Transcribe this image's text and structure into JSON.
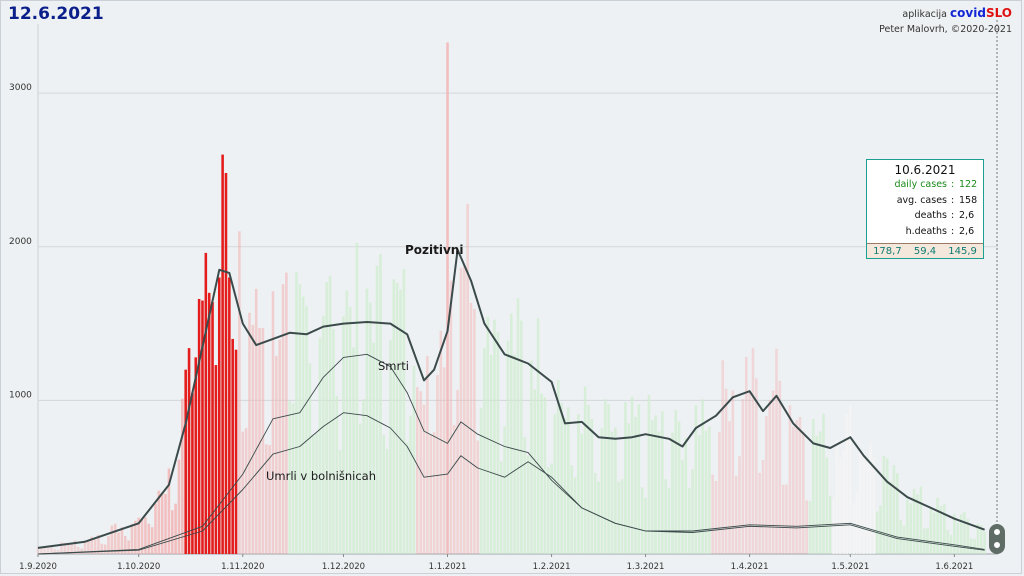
{
  "header": {
    "date": "12.6.2021",
    "app_prefix": "aplikacija",
    "brand_part1": "covid",
    "brand_part2": "SLO",
    "copyright": "Peter Malovrh, ©2020-2021"
  },
  "infobox": {
    "date": "10.6.2021",
    "rows": [
      {
        "label": "daily cases",
        "value": "122",
        "color": "#1a8a1a"
      },
      {
        "label": "avg. cases",
        "value": "158",
        "color": "#111111"
      },
      {
        "label": "deaths",
        "value": "2,6",
        "color": "#111111"
      },
      {
        "label": "h.deaths",
        "value": "2,6",
        "color": "#111111"
      }
    ],
    "footer": [
      "178,7",
      "59,4",
      "145,9"
    ]
  },
  "colors": {
    "background": "#eef1f3",
    "main_line": "#3b4a4a",
    "thin_line": "#3b4a4a",
    "bar_red": "#e41c1c",
    "bar_pink": "#f3b0b0",
    "bar_green": "#cdeccd",
    "bar_grey": "#f4f4f4",
    "grid": "#d3d7da"
  },
  "chart_data": {
    "type": "bar",
    "x_start": "1.9.2020",
    "x_end": "14.6.2021",
    "ylim": [
      0,
      3450
    ],
    "grid": true,
    "yticks": [
      "1000",
      "2000",
      "3000"
    ],
    "xticks": [
      "1.9.2020",
      "1.10.2020",
      "1.11.2020",
      "1.12.2020",
      "1.1.2021",
      "1.2.2021",
      "1.3.2021",
      "1.4.2021",
      "1.5.2021",
      "1.6.2021"
    ],
    "annotations": [
      "Pozitivni",
      "Smrti",
      "Umrli v bolnišnicah"
    ],
    "bars": {
      "description_note": "",
      "red_cluster": [
        {
          "x": "15.10.2020",
          "value": 1200
        },
        {
          "x": "16.10.2020",
          "value": 1340
        },
        {
          "x": "17.10.2020",
          "value": 1050
        },
        {
          "x": "18.10.2020",
          "value": 1280
        },
        {
          "x": "19.10.2020",
          "value": 1660
        },
        {
          "x": "20.10.2020",
          "value": 1650
        },
        {
          "x": "21.10.2020",
          "value": 1960
        },
        {
          "x": "22.10.2020",
          "value": 1700
        },
        {
          "x": "23.10.2020",
          "value": 1640
        },
        {
          "x": "24.10.2020",
          "value": 1230
        },
        {
          "x": "25.10.2020",
          "value": 1800
        },
        {
          "x": "26.10.2020",
          "value": 2600
        },
        {
          "x": "27.10.2020",
          "value": 2480
        },
        {
          "x": "28.10.2020",
          "value": 1800
        },
        {
          "x": "29.10.2020",
          "value": 1400
        },
        {
          "x": "30.10.2020",
          "value": 1330
        }
      ],
      "peak_pink": {
        "x": "1.1.2021",
        "value": 3330
      }
    },
    "series": [
      {
        "name": "Pozitivni",
        "points": [
          [
            "1.9.2020",
            40
          ],
          [
            "15.9.2020",
            80
          ],
          [
            "1.10.2020",
            200
          ],
          [
            "10.10.2020",
            450
          ],
          [
            "15.10.2020",
            850
          ],
          [
            "20.10.2020",
            1350
          ],
          [
            "25.10.2020",
            1850
          ],
          [
            "28.10.2020",
            1830
          ],
          [
            "1.11.2020",
            1500
          ],
          [
            "5.11.2020",
            1360
          ],
          [
            "10.11.2020",
            1400
          ],
          [
            "15.11.2020",
            1440
          ],
          [
            "20.11.2020",
            1430
          ],
          [
            "25.11.2020",
            1480
          ],
          [
            "1.12.2020",
            1500
          ],
          [
            "8.12.2020",
            1510
          ],
          [
            "15.12.2020",
            1500
          ],
          [
            "20.12.2020",
            1430
          ],
          [
            "25.12.2020",
            1130
          ],
          [
            "28.12.2020",
            1200
          ],
          [
            "1.1.2021",
            1450
          ],
          [
            "4.1.2021",
            1980
          ],
          [
            "8.1.2021",
            1780
          ],
          [
            "12.1.2021",
            1500
          ],
          [
            "18.1.2021",
            1300
          ],
          [
            "25.1.2021",
            1240
          ],
          [
            "1.2.2021",
            1120
          ],
          [
            "5.2.2021",
            850
          ],
          [
            "10.2.2021",
            860
          ],
          [
            "15.2.2021",
            760
          ],
          [
            "20.2.2021",
            750
          ],
          [
            "25.2.2021",
            760
          ],
          [
            "1.3.2021",
            780
          ],
          [
            "8.3.2021",
            750
          ],
          [
            "12.3.2021",
            700
          ],
          [
            "16.3.2021",
            820
          ],
          [
            "22.3.2021",
            900
          ],
          [
            "27.3.2021",
            1020
          ],
          [
            "1.4.2021",
            1060
          ],
          [
            "5.4.2021",
            930
          ],
          [
            "9.4.2021",
            1030
          ],
          [
            "14.4.2021",
            850
          ],
          [
            "20.4.2021",
            720
          ],
          [
            "25.4.2021",
            690
          ],
          [
            "1.5.2021",
            760
          ],
          [
            "5.5.2021",
            640
          ],
          [
            "12.5.2021",
            470
          ],
          [
            "18.5.2021",
            370
          ],
          [
            "25.5.2021",
            300
          ],
          [
            "1.6.2021",
            230
          ],
          [
            "10.6.2021",
            158
          ]
        ]
      },
      {
        "name": "Smrti",
        "points": [
          [
            "1.9.2020",
            0
          ],
          [
            "1.10.2020",
            30
          ],
          [
            "20.10.2020",
            180
          ],
          [
            "1.11.2020",
            520
          ],
          [
            "10.11.2020",
            880
          ],
          [
            "18.11.2020",
            920
          ],
          [
            "25.11.2020",
            1150
          ],
          [
            "1.12.2020",
            1280
          ],
          [
            "8.12.2020",
            1300
          ],
          [
            "15.12.2020",
            1220
          ],
          [
            "20.12.2020",
            1050
          ],
          [
            "25.12.2020",
            800
          ],
          [
            "1.1.2021",
            720
          ],
          [
            "5.1.2021",
            860
          ],
          [
            "10.1.2021",
            780
          ],
          [
            "18.1.2021",
            700
          ],
          [
            "25.1.2021",
            660
          ],
          [
            "1.2.2021",
            480
          ],
          [
            "10.2.2021",
            300
          ],
          [
            "20.2.2021",
            200
          ],
          [
            "1.3.2021",
            150
          ],
          [
            "15.3.2021",
            150
          ],
          [
            "1.4.2021",
            190
          ],
          [
            "15.4.2021",
            180
          ],
          [
            "1.5.2021",
            200
          ],
          [
            "15.5.2021",
            110
          ],
          [
            "1.6.2021",
            60
          ],
          [
            "10.6.2021",
            30
          ]
        ]
      },
      {
        "name": "Umrli v bolnišnicah",
        "points": [
          [
            "1.9.2020",
            0
          ],
          [
            "1.10.2020",
            25
          ],
          [
            "20.10.2020",
            150
          ],
          [
            "1.11.2020",
            420
          ],
          [
            "10.11.2020",
            650
          ],
          [
            "18.11.2020",
            700
          ],
          [
            "25.11.2020",
            830
          ],
          [
            "1.12.2020",
            920
          ],
          [
            "8.12.2020",
            900
          ],
          [
            "15.12.2020",
            820
          ],
          [
            "20.12.2020",
            700
          ],
          [
            "25.12.2020",
            500
          ],
          [
            "1.1.2021",
            520
          ],
          [
            "5.1.2021",
            640
          ],
          [
            "10.1.2021",
            560
          ],
          [
            "18.1.2021",
            500
          ],
          [
            "25.1.2021",
            600
          ],
          [
            "1.2.2021",
            500
          ],
          [
            "10.2.2021",
            300
          ],
          [
            "20.2.2021",
            200
          ],
          [
            "1.3.2021",
            150
          ],
          [
            "15.3.2021",
            140
          ],
          [
            "1.4.2021",
            180
          ],
          [
            "15.4.2021",
            170
          ],
          [
            "1.5.2021",
            190
          ],
          [
            "15.5.2021",
            100
          ],
          [
            "1.6.2021",
            50
          ],
          [
            "10.6.2021",
            25
          ]
        ]
      }
    ]
  }
}
